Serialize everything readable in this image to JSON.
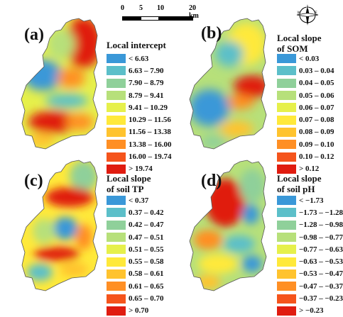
{
  "scalebar": {
    "ticks": [
      "0",
      "5",
      "10",
      "20 km"
    ]
  },
  "compass": {
    "icon": "north-arrow-compass-icon",
    "letters": [
      "N",
      "S",
      "E",
      "W"
    ]
  },
  "panels": [
    {
      "label": "(a)",
      "title_lines": [
        "Local intercept"
      ],
      "legend": [
        {
          "label": "< 6.63",
          "color": "#3a98d8"
        },
        {
          "label": "6.63 – 7.90",
          "color": "#5cbfc9"
        },
        {
          "label": "7.90 – 8.79",
          "color": "#8fd09a"
        },
        {
          "label": "8.79 – 9.41",
          "color": "#b7e07a"
        },
        {
          "label": "9.41 – 10.29",
          "color": "#e6f04b"
        },
        {
          "label": "10.29 – 11.56",
          "color": "#ffe93a"
        },
        {
          "label": "11.56 – 13.38",
          "color": "#ffc32e"
        },
        {
          "label": "13.38 – 16.00",
          "color": "#ff8f24"
        },
        {
          "label": "16.00 – 19.74",
          "color": "#f5541c"
        },
        {
          "label": "> 19.74",
          "color": "#e01c10"
        }
      ]
    },
    {
      "label": "(b)",
      "title_lines": [
        "Local slope",
        "of SOM"
      ],
      "legend": [
        {
          "label": "< 0.03",
          "color": "#3a98d8"
        },
        {
          "label": "0.03 – 0.04",
          "color": "#5cbfc9"
        },
        {
          "label": "0.04 – 0.05",
          "color": "#8fd09a"
        },
        {
          "label": "0.05 – 0.06",
          "color": "#b7e07a"
        },
        {
          "label": "0.06 – 0.07",
          "color": "#e6f04b"
        },
        {
          "label": "0.07 – 0.08",
          "color": "#ffe93a"
        },
        {
          "label": "0.08 – 0.09",
          "color": "#ffc32e"
        },
        {
          "label": "0.09 – 0.10",
          "color": "#ff8f24"
        },
        {
          "label": "0.10 – 0.12",
          "color": "#f5541c"
        },
        {
          "label": "> 0.12",
          "color": "#e01c10"
        }
      ]
    },
    {
      "label": "(c)",
      "title_lines": [
        "Local slope",
        "of soil TP"
      ],
      "legend": [
        {
          "label": "< 0.37",
          "color": "#3a98d8"
        },
        {
          "label": "0.37 – 0.42",
          "color": "#5cbfc9"
        },
        {
          "label": "0.42 – 0.47",
          "color": "#8fd09a"
        },
        {
          "label": "0.47 – 0.51",
          "color": "#b7e07a"
        },
        {
          "label": "0.51 – 0.55",
          "color": "#e6f04b"
        },
        {
          "label": "0.55 – 0.58",
          "color": "#ffe93a"
        },
        {
          "label": "0.58 – 0.61",
          "color": "#ffc32e"
        },
        {
          "label": "0.61 – 0.65",
          "color": "#ff8f24"
        },
        {
          "label": "0.65 – 0.70",
          "color": "#f5541c"
        },
        {
          "label": "> 0.70",
          "color": "#e01c10"
        }
      ]
    },
    {
      "label": "(d)",
      "title_lines": [
        "Local slope",
        "of soil pH"
      ],
      "legend": [
        {
          "label": "< −1.73",
          "color": "#3a98d8"
        },
        {
          "label": "−1.73 – −1.28",
          "color": "#5cbfc9"
        },
        {
          "label": "−1.28 – −0.98",
          "color": "#8fd09a"
        },
        {
          "label": "−0.98 – −0.77",
          "color": "#b7e07a"
        },
        {
          "label": "−0.77 – −0.63",
          "color": "#e6f04b"
        },
        {
          "label": "−0.63 – −0.53",
          "color": "#ffe93a"
        },
        {
          "label": "−0.53 – −0.47",
          "color": "#ffc32e"
        },
        {
          "label": "−0.47 – −0.37",
          "color": "#ff8f24"
        },
        {
          "label": "−0.37 – −0.23",
          "color": "#f5541c"
        },
        {
          "label": "> −0.23",
          "color": "#e01c10"
        }
      ]
    }
  ]
}
